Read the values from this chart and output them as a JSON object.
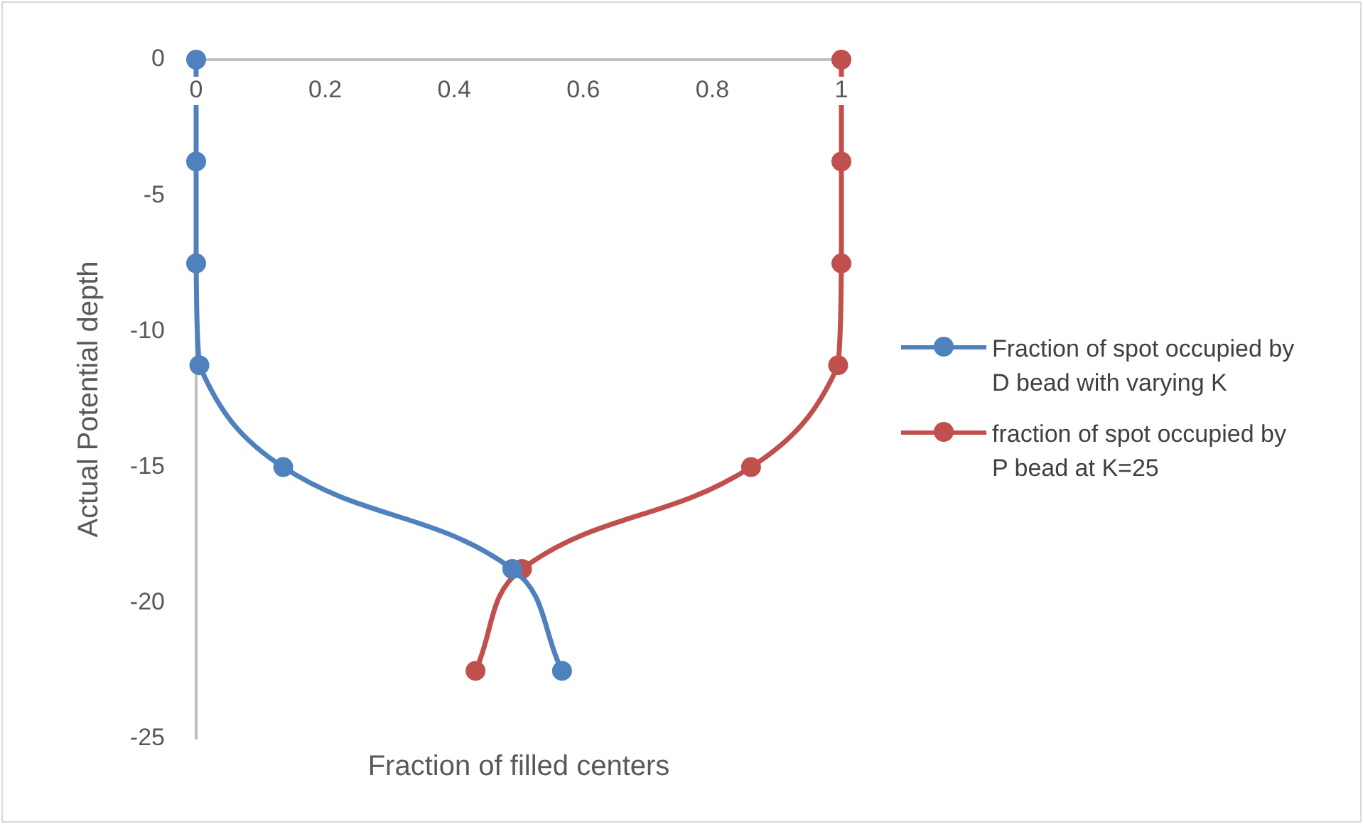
{
  "chart_data": {
    "type": "line",
    "xlabel": "Fraction of filled centers",
    "ylabel": "Actual Potential depth",
    "xlim": [
      0,
      1
    ],
    "xticks": [
      0,
      0.2,
      0.4,
      0.6,
      0.8,
      {
        "value": 1,
        "label": "1"
      }
    ],
    "ylim": [
      -25,
      0
    ],
    "yticks": [
      -25,
      -20,
      -15,
      -10,
      -5,
      0
    ],
    "grid": false,
    "legend": "right",
    "marker": "circle",
    "line_style": "solid",
    "series": [
      {
        "name": "Fraction of spot occupied by D bead with varying K",
        "color": "#4f81bd",
        "x": [
          0,
          0,
          0,
          0.005,
          0.135,
          0.49,
          0.567
        ],
        "values": [
          0,
          -3.75,
          -7.5,
          -11.25,
          -15,
          -18.75,
          -22.5
        ]
      },
      {
        "name": "fraction of spot occupied by P bead at K=25",
        "color": "#c0504d",
        "x": [
          1,
          1,
          1,
          0.995,
          0.86,
          0.505,
          0.433
        ],
        "values": [
          0,
          -3.75,
          -7.5,
          -11.25,
          -15,
          -18.75,
          -22.5
        ]
      }
    ]
  }
}
